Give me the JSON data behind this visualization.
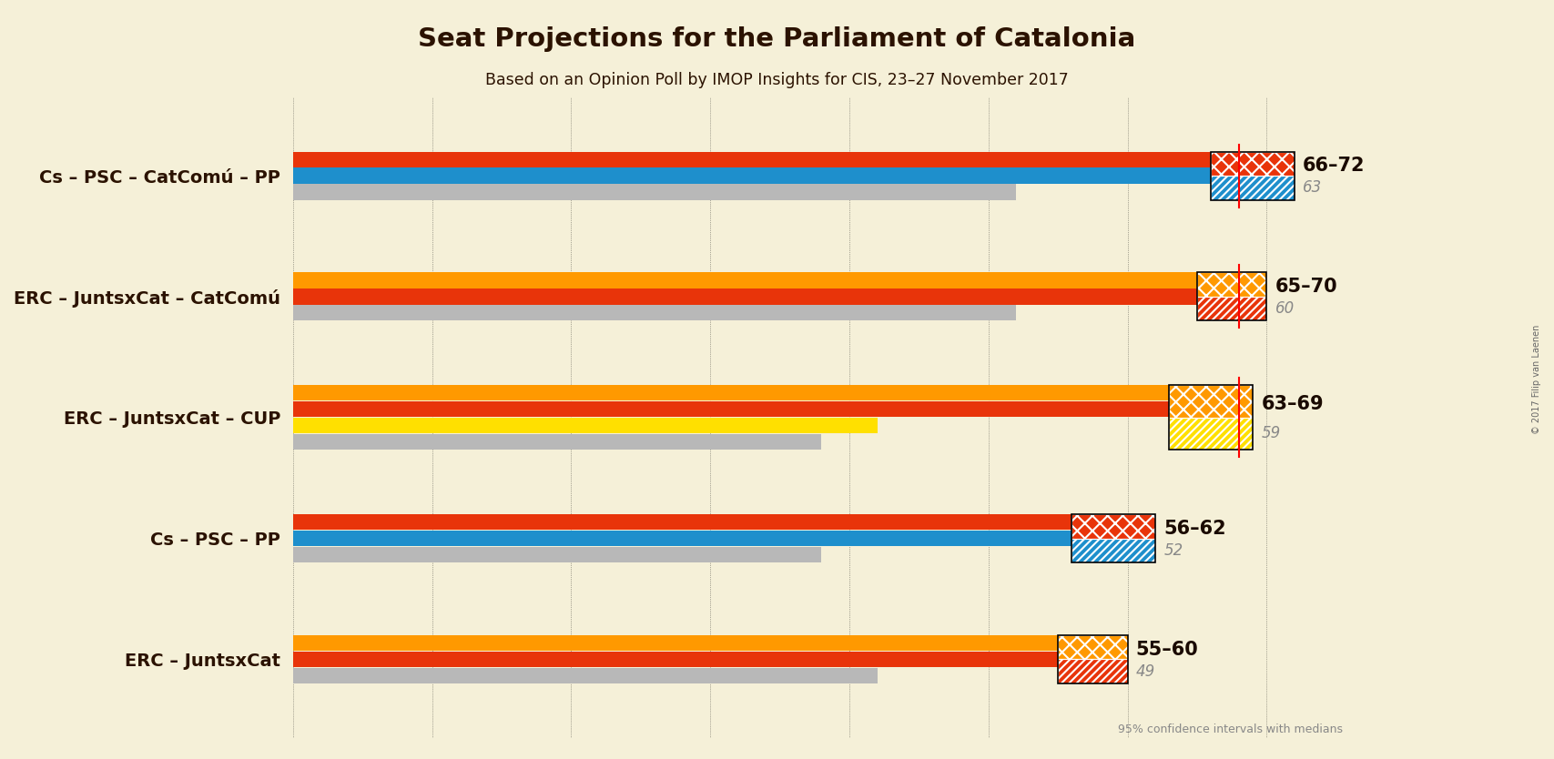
{
  "title": "Seat Projections for the Parliament of Catalonia",
  "subtitle": "Based on an Opinion Poll by IMOP Insights for CIS, 23–27 November 2017",
  "copyright": "© 2017 Filip van Laenen",
  "background_color": "#f5f0d8",
  "coalitions": [
    {
      "label": "Cs – PSC – CatComú – PP",
      "range_label": "66–72",
      "median": 63,
      "ci_low": 66,
      "ci_high": 72,
      "sub_bars": [
        {
          "value": 72,
          "color": "#e8340a"
        },
        {
          "value": 66,
          "color": "#1e8fcc"
        },
        {
          "value": 52,
          "color": "#b8b8b8"
        }
      ],
      "hatch_top_color": "#e8340a",
      "hatch_bot_color": "#1e8fcc",
      "majority_line": true
    },
    {
      "label": "ERC – JuntsxCat – CatComú",
      "range_label": "65–70",
      "median": 60,
      "ci_low": 65,
      "ci_high": 70,
      "sub_bars": [
        {
          "value": 70,
          "color": "#ff9900"
        },
        {
          "value": 65,
          "color": "#e8340a"
        },
        {
          "value": 52,
          "color": "#b8b8b8"
        }
      ],
      "hatch_top_color": "#ff9900",
      "hatch_bot_color": "#e8340a",
      "majority_line": true
    },
    {
      "label": "ERC – JuntsxCat – CUP",
      "range_label": "63–69",
      "median": 59,
      "ci_low": 63,
      "ci_high": 69,
      "sub_bars": [
        {
          "value": 69,
          "color": "#ff9900"
        },
        {
          "value": 63,
          "color": "#e8340a"
        },
        {
          "value": 42,
          "color": "#ffe000"
        },
        {
          "value": 38,
          "color": "#b8b8b8"
        }
      ],
      "hatch_top_color": "#ff9900",
      "hatch_bot_color": "#ffe000",
      "majority_line": true
    },
    {
      "label": "Cs – PSC – PP",
      "range_label": "56–62",
      "median": 52,
      "ci_low": 56,
      "ci_high": 62,
      "sub_bars": [
        {
          "value": 62,
          "color": "#e8340a"
        },
        {
          "value": 56,
          "color": "#1e8fcc"
        },
        {
          "value": 38,
          "color": "#b8b8b8"
        }
      ],
      "hatch_top_color": "#e8340a",
      "hatch_bot_color": "#1e8fcc",
      "majority_line": false
    },
    {
      "label": "ERC – JuntsxCat",
      "range_label": "55–60",
      "median": 49,
      "ci_low": 55,
      "ci_high": 60,
      "sub_bars": [
        {
          "value": 60,
          "color": "#ff9900"
        },
        {
          "value": 55,
          "color": "#e8340a"
        },
        {
          "value": 42,
          "color": "#b8b8b8"
        }
      ],
      "hatch_top_color": "#ff9900",
      "hatch_bot_color": "#e8340a",
      "majority_line": false
    }
  ],
  "x_min": 0,
  "x_max": 75,
  "majority_seats": 68,
  "label_color": "#2b1200",
  "range_label_color": "#1a0a00",
  "median_color": "#888888",
  "note": "95% confidence intervals with medians"
}
